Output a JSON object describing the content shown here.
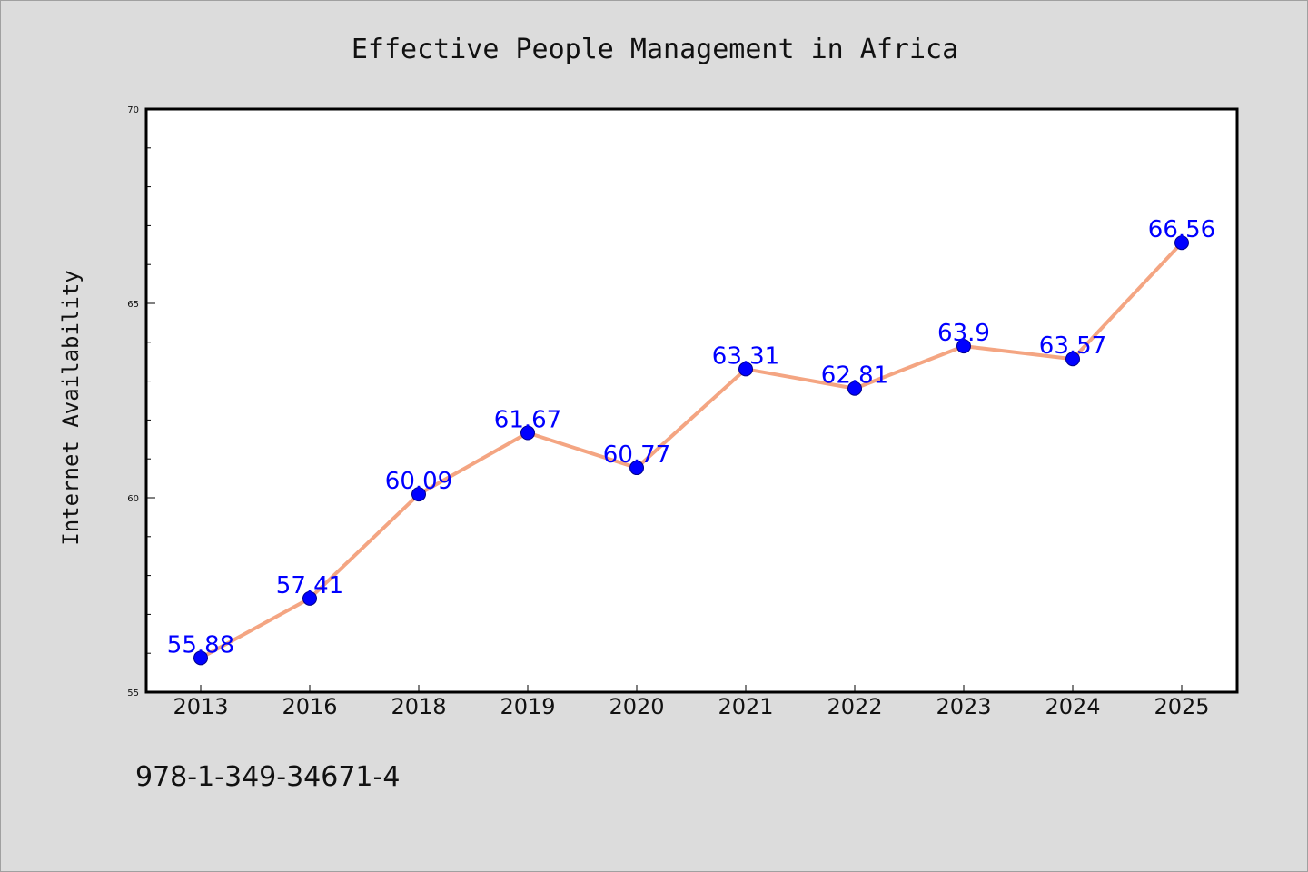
{
  "chart_data": {
    "type": "line",
    "title": "Effective People Management in Africa",
    "xlabel": "",
    "ylabel": "Internet Availability",
    "categories": [
      "2013",
      "2016",
      "2018",
      "2019",
      "2020",
      "2021",
      "2022",
      "2023",
      "2024",
      "2025"
    ],
    "series": [
      {
        "values": [
          55.88,
          57.41,
          60.09,
          61.67,
          60.77,
          63.31,
          62.81,
          63.9,
          63.57,
          66.56
        ],
        "data_labels": [
          "55.88",
          "57.41",
          "60.09",
          "61.67",
          "60.77",
          "63.31",
          "62.81",
          "63.9",
          "63.57",
          "66.56"
        ]
      }
    ],
    "ylim": [
      55,
      70
    ],
    "yticks": [
      55,
      60,
      65,
      70
    ],
    "ytick_labels": [
      "55",
      "60",
      "65",
      "70"
    ],
    "y_minor_step": 1,
    "grid": false,
    "legend": "none",
    "colors": {
      "line": "#f4a582",
      "marker": "#0000ff",
      "marker_edge": "#00008b",
      "data_label": "#0000ff",
      "background": "#dcdcdc",
      "plot_background": "#ffffff",
      "axes": "#000000"
    }
  },
  "footnote": "978-1-349-34671-4"
}
